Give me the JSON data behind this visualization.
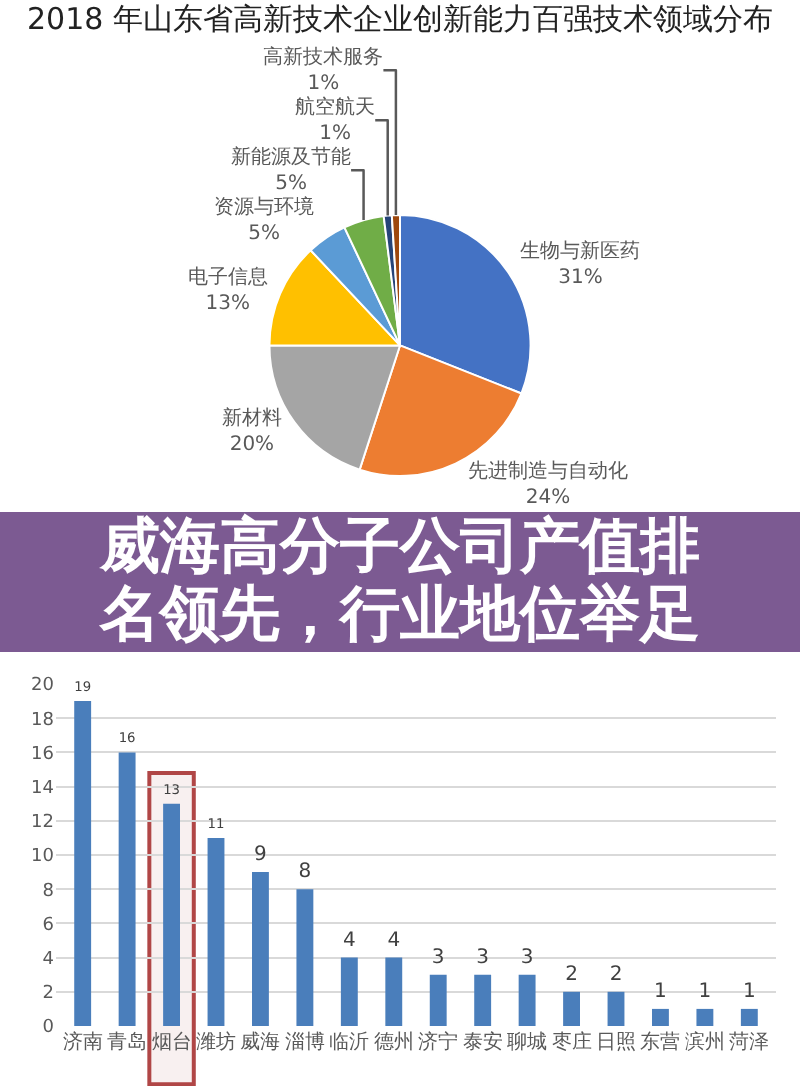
{
  "chart_data": [
    {
      "type": "pie",
      "title": "2018 年山东省高新技术企业创新能力百强技术领域分布",
      "categories": [
        "生物与新医药",
        "先进制造与自动化",
        "新材料",
        "电子信息",
        "资源与环境",
        "新能源及节能",
        "航空航天",
        "高新技术服务"
      ],
      "values": [
        31,
        24,
        20,
        13,
        5,
        5,
        1,
        1
      ],
      "colors": [
        "#4472c4",
        "#ed7d31",
        "#a5a5a5",
        "#ffc000",
        "#5b9bd5",
        "#70ad47",
        "#264478",
        "#9e480e"
      ],
      "value_labels": [
        "31%",
        "24%",
        "20%",
        "13%",
        "5%",
        "5%",
        "1%",
        "1%"
      ]
    },
    {
      "type": "other",
      "title": "威海高分子公司产值排名领先，行业地位举足"
    },
    {
      "type": "bar",
      "categories": [
        "济南",
        "青岛",
        "烟台",
        "潍坊",
        "威海",
        "淄博",
        "临沂",
        "德州",
        "济宁",
        "泰安",
        "聊城",
        "枣庄",
        "日照",
        "东营",
        "滨州",
        "菏泽"
      ],
      "values": [
        19,
        16,
        13,
        11,
        9,
        8,
        4,
        4,
        3,
        3,
        3,
        2,
        2,
        1,
        1,
        1
      ],
      "color": "#4a7ebb",
      "ylim": [
        0,
        20
      ],
      "yticks": [
        0,
        2,
        4,
        6,
        8,
        10,
        12,
        14,
        16,
        18,
        20
      ],
      "grid": "y",
      "data_labels": true,
      "bands": [
        {
          "axis": "x",
          "from": "烟台",
          "to": "烟台",
          "color": "#a83232"
        }
      ]
    }
  ]
}
